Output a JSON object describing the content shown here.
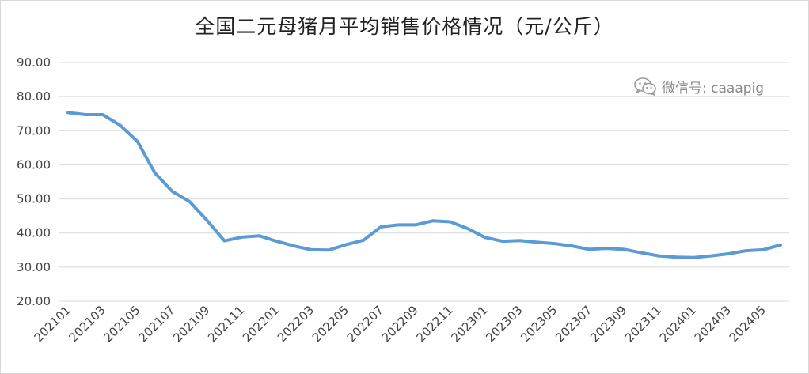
{
  "chart_data": {
    "type": "line",
    "title": "全国二元母猪月平均销售价格情况（元/公斤）",
    "xlabel": "",
    "ylabel": "",
    "ylim": [
      20,
      90
    ],
    "y_ticks": [
      "20.00",
      "30.00",
      "40.00",
      "50.00",
      "60.00",
      "70.00",
      "80.00",
      "90.00"
    ],
    "grid": true,
    "legend": "none",
    "line_color": "#5b9bd5",
    "x": [
      "202101",
      "202102",
      "202103",
      "202104",
      "202105",
      "202106",
      "202107",
      "202108",
      "202109",
      "202110",
      "202111",
      "202112",
      "202201",
      "202202",
      "202203",
      "202204",
      "202205",
      "202206",
      "202207",
      "202208",
      "202209",
      "202210",
      "202211",
      "202212",
      "202301",
      "202302",
      "202303",
      "202304",
      "202305",
      "202306",
      "202307",
      "202308",
      "202309",
      "202310",
      "202311",
      "202312",
      "202401",
      "202402",
      "202403",
      "202404",
      "202405",
      "202406"
    ],
    "x_tick_labels": [
      "202101",
      "202103",
      "202105",
      "202107",
      "202109",
      "202111",
      "202201",
      "202203",
      "202205",
      "202207",
      "202209",
      "202211",
      "202301",
      "202303",
      "202305",
      "202307",
      "202309",
      "202311",
      "202401",
      "202403",
      "202405"
    ],
    "series": [
      {
        "values": [
          75.3,
          74.7,
          74.7,
          71.6,
          66.8,
          57.6,
          52.2,
          49.2,
          43.7,
          37.7,
          38.8,
          39.2,
          37.6,
          36.2,
          35.1,
          35.0,
          36.6,
          37.9,
          41.8,
          42.4,
          42.4,
          43.6,
          43.3,
          41.3,
          38.7,
          37.6,
          37.8,
          37.3,
          36.9,
          36.2,
          35.2,
          35.5,
          35.2,
          34.2,
          33.3,
          32.9,
          32.8,
          33.3,
          33.9,
          34.8,
          35.1,
          36.5
        ]
      }
    ]
  },
  "watermark": {
    "text": "微信号: caaapig",
    "icon": "wechat-icon"
  }
}
